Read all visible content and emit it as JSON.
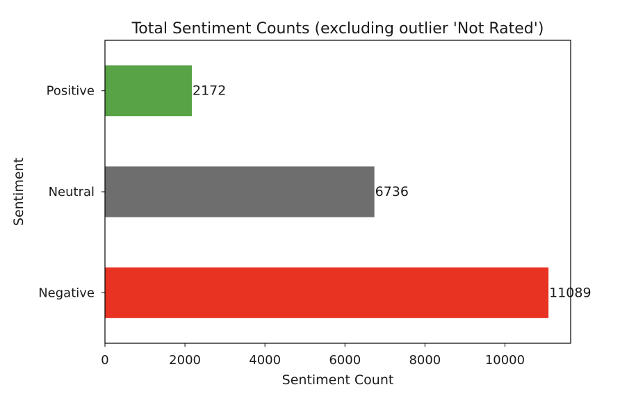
{
  "chart_data": {
    "type": "bar",
    "orientation": "horizontal",
    "title": "Total Sentiment Counts (excluding outlier 'Not Rated')",
    "xlabel": "Sentiment Count",
    "ylabel": "Sentiment",
    "categories": [
      "Negative",
      "Neutral",
      "Positive"
    ],
    "values": [
      11089,
      6736,
      2172
    ],
    "colors": [
      "#e83323",
      "#6e6e6e",
      "#57a345"
    ],
    "x_ticks": [
      0,
      2000,
      4000,
      6000,
      8000,
      10000
    ],
    "xlim": [
      0,
      11643
    ],
    "grid": false,
    "data_labels": [
      "11089",
      "6736",
      "2172"
    ]
  }
}
